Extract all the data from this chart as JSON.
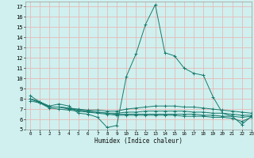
{
  "background_color": "#cff0ee",
  "grid_color": "#e8b8b8",
  "line_color": "#1a7a6e",
  "xlabel": "Humidex (Indice chaleur)",
  "xlim": [
    -0.5,
    23
  ],
  "ylim": [
    5,
    17.5
  ],
  "yticks": [
    5,
    6,
    7,
    8,
    9,
    10,
    11,
    12,
    13,
    14,
    15,
    16,
    17
  ],
  "xticks": [
    0,
    1,
    2,
    3,
    4,
    5,
    6,
    7,
    8,
    9,
    10,
    11,
    12,
    13,
    14,
    15,
    16,
    17,
    18,
    19,
    20,
    21,
    22,
    23
  ],
  "series": [
    {
      "x": [
        0,
        1,
        2,
        3,
        4,
        5,
        6,
        7,
        8,
        9,
        10,
        11,
        12,
        13,
        14,
        15,
        16,
        17,
        18,
        19,
        20,
        21,
        22,
        23
      ],
      "y": [
        8.3,
        7.7,
        7.3,
        7.5,
        7.3,
        6.6,
        6.5,
        6.2,
        5.2,
        5.4,
        10.2,
        12.4,
        15.3,
        17.2,
        12.5,
        12.2,
        11.0,
        10.5,
        10.3,
        8.2,
        6.6,
        6.3,
        5.5,
        6.3
      ]
    },
    {
      "x": [
        0,
        1,
        2,
        3,
        4,
        5,
        6,
        7,
        8,
        9,
        10,
        11,
        12,
        13,
        14,
        15,
        16,
        17,
        18,
        19,
        20,
        21,
        22,
        23
      ],
      "y": [
        8.0,
        7.7,
        7.2,
        7.2,
        7.1,
        7.0,
        6.9,
        6.9,
        6.8,
        6.8,
        7.0,
        7.1,
        7.2,
        7.3,
        7.3,
        7.3,
        7.2,
        7.2,
        7.1,
        7.0,
        6.9,
        6.8,
        6.7,
        6.6
      ]
    },
    {
      "x": [
        0,
        1,
        2,
        3,
        4,
        5,
        6,
        7,
        8,
        9,
        10,
        11,
        12,
        13,
        14,
        15,
        16,
        17,
        18,
        19,
        20,
        21,
        22,
        23
      ],
      "y": [
        8.0,
        7.6,
        7.2,
        7.2,
        7.0,
        6.9,
        6.8,
        6.7,
        6.6,
        6.6,
        6.7,
        6.7,
        6.8,
        6.8,
        6.8,
        6.8,
        6.8,
        6.7,
        6.7,
        6.6,
        6.6,
        6.5,
        6.4,
        6.4
      ]
    },
    {
      "x": [
        0,
        1,
        2,
        3,
        4,
        5,
        6,
        7,
        8,
        9,
        10,
        11,
        12,
        13,
        14,
        15,
        16,
        17,
        18,
        19,
        20,
        21,
        22,
        23
      ],
      "y": [
        8.0,
        7.7,
        7.2,
        7.2,
        7.1,
        6.9,
        6.8,
        6.7,
        6.6,
        6.5,
        6.5,
        6.5,
        6.5,
        6.5,
        6.5,
        6.5,
        6.5,
        6.5,
        6.4,
        6.4,
        6.3,
        6.3,
        6.2,
        6.3
      ]
    },
    {
      "x": [
        0,
        1,
        2,
        3,
        4,
        5,
        6,
        7,
        8,
        9,
        10,
        11,
        12,
        13,
        14,
        15,
        16,
        17,
        18,
        19,
        20,
        21,
        22,
        23
      ],
      "y": [
        7.8,
        7.6,
        7.1,
        7.0,
        6.9,
        6.8,
        6.7,
        6.6,
        6.5,
        6.4,
        6.4,
        6.4,
        6.4,
        6.4,
        6.4,
        6.4,
        6.3,
        6.3,
        6.3,
        6.2,
        6.2,
        6.1,
        5.8,
        6.2
      ]
    }
  ]
}
